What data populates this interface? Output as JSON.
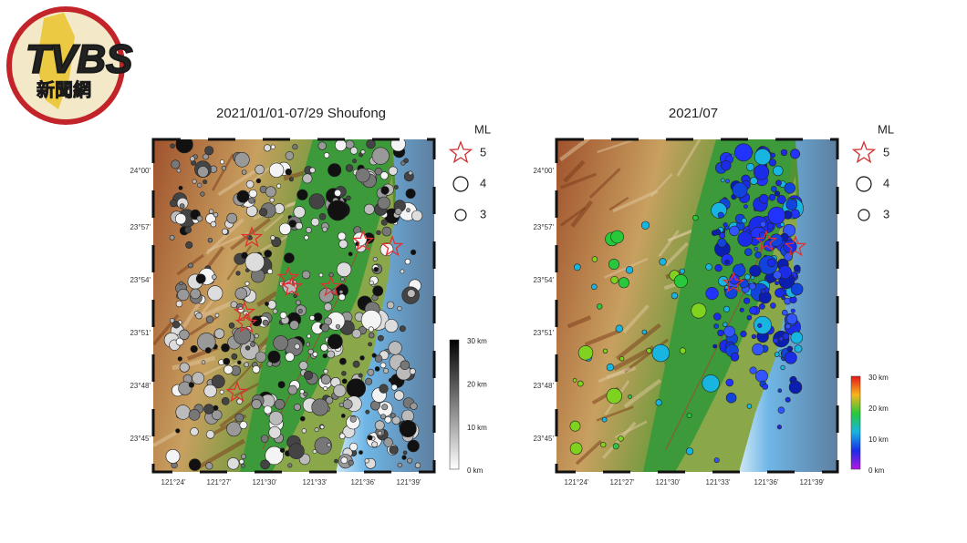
{
  "logo": {
    "brand": "TVBS",
    "subtitle": "新聞網"
  },
  "maps": [
    {
      "title": "2021/01/01-07/29 Shoufong",
      "lat_labels": [
        "24°00'",
        "23°57'",
        "23°54'",
        "23°51'",
        "23°48'",
        "23°45'"
      ],
      "lon_labels": [
        "121°24'",
        "121°27'",
        "121°30'",
        "121°33'",
        "121°36'",
        "121°39'"
      ],
      "legend": {
        "title": "ML",
        "magnitudes": [
          5,
          4,
          3
        ]
      },
      "depth_scale": [
        "30 km",
        "20 km",
        "10 km",
        "0 km"
      ]
    },
    {
      "title": "2021/07",
      "lat_labels": [
        "24°00'",
        "23°57'",
        "23°54'",
        "23°51'",
        "23°48'",
        "23°45'"
      ],
      "lon_labels": [
        "121°24'",
        "121°27'",
        "121°30'",
        "121°33'",
        "121°36'",
        "121°39'"
      ],
      "legend": {
        "title": "ML",
        "magnitudes": [
          5,
          4,
          3
        ]
      },
      "depth_scale": [
        "30 km",
        "20 km",
        "10 km",
        "0 km"
      ]
    }
  ]
}
